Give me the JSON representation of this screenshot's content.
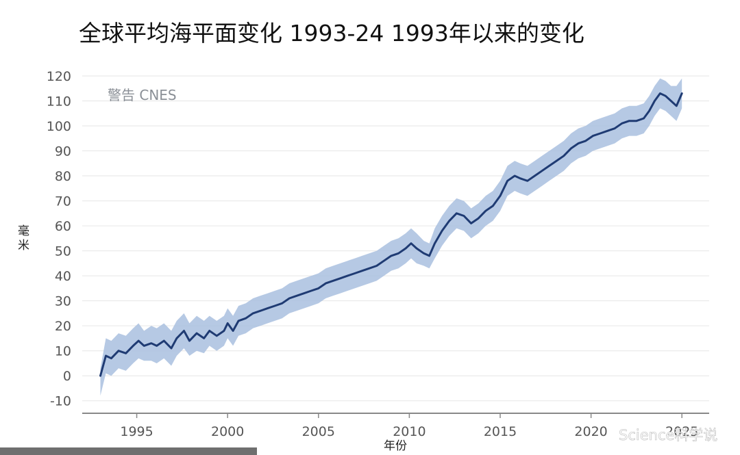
{
  "title": "全球平均海平面变化 1993-24 1993年以来的变化",
  "note": "警告 CNES",
  "watermark": "Science科学说",
  "colors": {
    "line": "#1f3b73",
    "band": "#a9bfdf",
    "grid": "#e6e6e6",
    "axis": "#888888"
  },
  "chart_data": {
    "type": "line",
    "title": "全球平均海平面变化 1993-24 1993年以来的变化",
    "xlabel": "年份",
    "ylabel": "毫米",
    "xlim": [
      1992,
      2026.5
    ],
    "ylim": [
      -15,
      123
    ],
    "xticks": [
      1995,
      2000,
      2005,
      2010,
      2015,
      2020,
      2025
    ],
    "yticks": [
      -10,
      0,
      10,
      20,
      30,
      40,
      50,
      60,
      70,
      80,
      90,
      100,
      110,
      120
    ],
    "grid": "horizontal",
    "series": [
      {
        "x": [
          1993.0,
          1993.3,
          1993.6,
          1994.0,
          1994.4,
          1994.8,
          1995.1,
          1995.4,
          1995.8,
          1996.1,
          1996.5,
          1996.9,
          1997.2,
          1997.6,
          1997.9,
          1998.3,
          1998.7,
          1999.0,
          1999.4,
          1999.8,
          2000.0,
          2000.3,
          2000.6,
          2001.0,
          2001.4,
          2001.8,
          2002.2,
          2002.6,
          2003.0,
          2003.4,
          2003.8,
          2004.2,
          2004.6,
          2005.0,
          2005.4,
          2005.8,
          2006.2,
          2006.6,
          2007.0,
          2007.4,
          2007.8,
          2008.2,
          2008.6,
          2009.0,
          2009.4,
          2009.8,
          2010.1,
          2010.4,
          2010.8,
          2011.1,
          2011.4,
          2011.8,
          2012.2,
          2012.6,
          2013.0,
          2013.4,
          2013.8,
          2014.2,
          2014.6,
          2015.0,
          2015.4,
          2015.8,
          2016.1,
          2016.5,
          2016.9,
          2017.3,
          2017.7,
          2018.1,
          2018.5,
          2018.9,
          2019.3,
          2019.7,
          2020.1,
          2020.5,
          2020.9,
          2021.3,
          2021.7,
          2022.1,
          2022.5,
          2022.9,
          2023.2,
          2023.5,
          2023.8,
          2024.1,
          2024.4,
          2024.7,
          2025.0
        ],
        "y": [
          0,
          8,
          7,
          10,
          9,
          12,
          14,
          12,
          13,
          12,
          14,
          11,
          15,
          18,
          14,
          17,
          15,
          18,
          16,
          18,
          21,
          18,
          22,
          23,
          25,
          26,
          27,
          28,
          29,
          31,
          32,
          33,
          34,
          35,
          37,
          38,
          39,
          40,
          41,
          42,
          43,
          44,
          46,
          48,
          49,
          51,
          53,
          51,
          49,
          48,
          53,
          58,
          62,
          65,
          64,
          61,
          63,
          66,
          68,
          72,
          78,
          80,
          79,
          78,
          80,
          82,
          84,
          86,
          88,
          91,
          93,
          94,
          96,
          97,
          98,
          99,
          101,
          102,
          102,
          103,
          106,
          110,
          113,
          112,
          110,
          108,
          113
        ],
        "lower": [
          -8,
          1,
          0,
          3,
          2,
          5,
          7,
          6,
          6,
          5,
          7,
          4,
          8,
          11,
          8,
          10,
          9,
          12,
          10,
          12,
          15,
          12,
          16,
          17,
          19,
          20,
          21,
          22,
          23,
          25,
          26,
          27,
          28,
          29,
          31,
          32,
          33,
          34,
          35,
          36,
          37,
          38,
          40,
          42,
          43,
          45,
          47,
          45,
          44,
          43,
          47,
          52,
          56,
          59,
          58,
          55,
          57,
          60,
          62,
          66,
          72,
          74,
          73,
          72,
          74,
          76,
          78,
          80,
          82,
          85,
          87,
          88,
          90,
          91,
          92,
          93,
          95,
          96,
          96,
          97,
          100,
          104,
          107,
          106,
          104,
          102,
          107
        ],
        "upper": [
          3,
          15,
          14,
          17,
          16,
          19,
          21,
          18,
          20,
          19,
          21,
          18,
          22,
          25,
          21,
          24,
          22,
          24,
          22,
          24,
          27,
          24,
          28,
          29,
          31,
          32,
          33,
          34,
          35,
          37,
          38,
          39,
          40,
          41,
          43,
          44,
          45,
          46,
          47,
          48,
          49,
          50,
          52,
          54,
          55,
          57,
          59,
          57,
          54,
          53,
          59,
          64,
          68,
          71,
          70,
          67,
          69,
          72,
          74,
          78,
          84,
          86,
          85,
          84,
          86,
          88,
          90,
          92,
          94,
          97,
          99,
          100,
          102,
          103,
          104,
          105,
          107,
          108,
          108,
          109,
          112,
          116,
          119,
          118,
          116,
          116,
          119
        ]
      }
    ]
  }
}
